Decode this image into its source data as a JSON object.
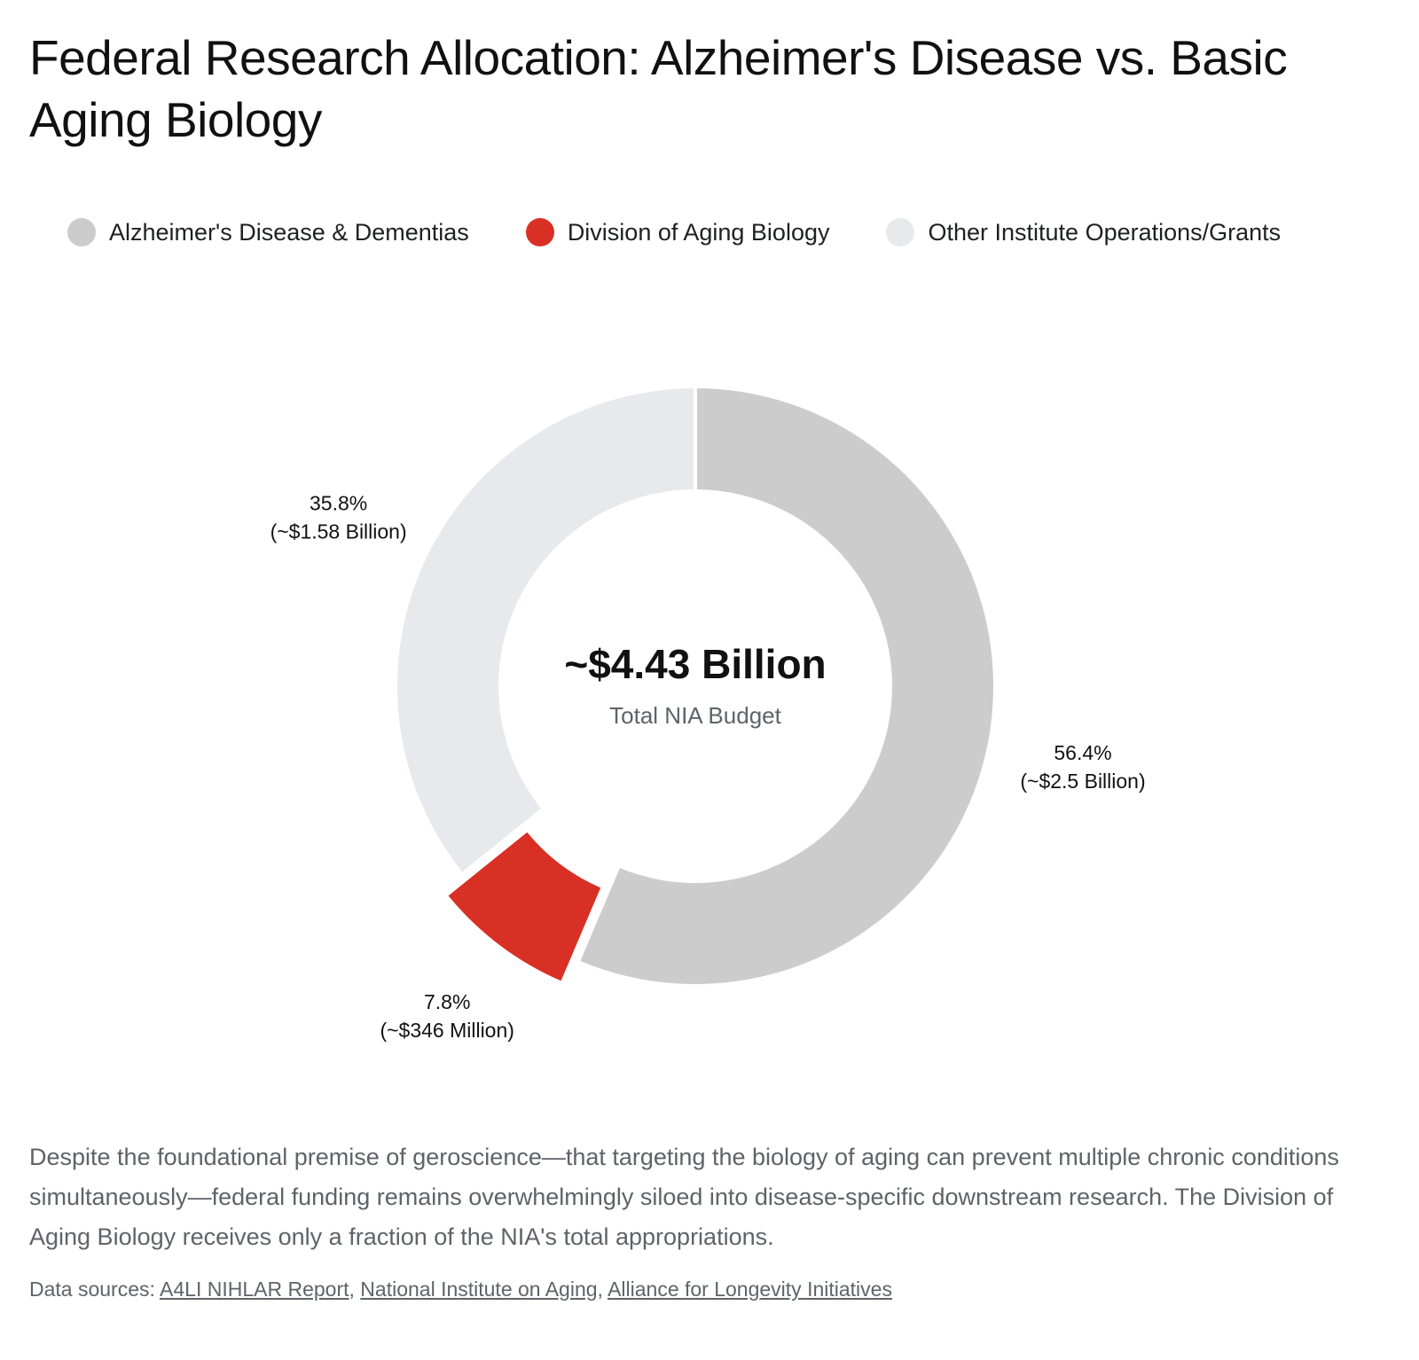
{
  "header": {
    "title": "Federal Research Allocation: Alzheimer's Disease vs. Basic Aging Biology"
  },
  "legend": {
    "items": [
      {
        "label": "Alzheimer's Disease & Dementias",
        "color": "#cccccc"
      },
      {
        "label": "Division of Aging Biology",
        "color": "#d93025"
      },
      {
        "label": "Other Institute Operations/Grants",
        "color": "#e8e9ec"
      }
    ]
  },
  "chart_data": {
    "type": "pie",
    "donut": true,
    "legend_position": "top",
    "center": {
      "value": "~$4.43 Billion",
      "label": "Total NIA Budget"
    },
    "slices": [
      {
        "name": "Alzheimer's Disease & Dementias",
        "value": 56.4,
        "percent_label": "56.4%",
        "amount_label": "(~$2.5 Billion)",
        "color": "#cccccc"
      },
      {
        "name": "Division of Aging Biology",
        "value": 7.8,
        "percent_label": "7.8%",
        "amount_label": "(~$346 Million)",
        "color": "#d93025",
        "offset": true
      },
      {
        "name": "Other Institute Operations/Grants",
        "value": 35.8,
        "percent_label": "35.8%",
        "amount_label": "(~$1.58 Billion)",
        "color": "#e8e9ec"
      }
    ]
  },
  "description": "Despite the foundational premise of geroscience—that targeting the biology of aging can prevent multiple chronic conditions simultaneously—federal funding remains overwhelmingly siloed into disease-specific downstream research. The Division of Aging Biology receives only a fraction of the NIA's total appropriations.",
  "sources": {
    "prefix": "Data sources: ",
    "links": [
      {
        "label": "A4LI NIHLAR Report"
      },
      {
        "label": "National Institute on Aging"
      },
      {
        "label": "Alliance for Longevity Initiatives"
      }
    ],
    "separator": ", "
  }
}
